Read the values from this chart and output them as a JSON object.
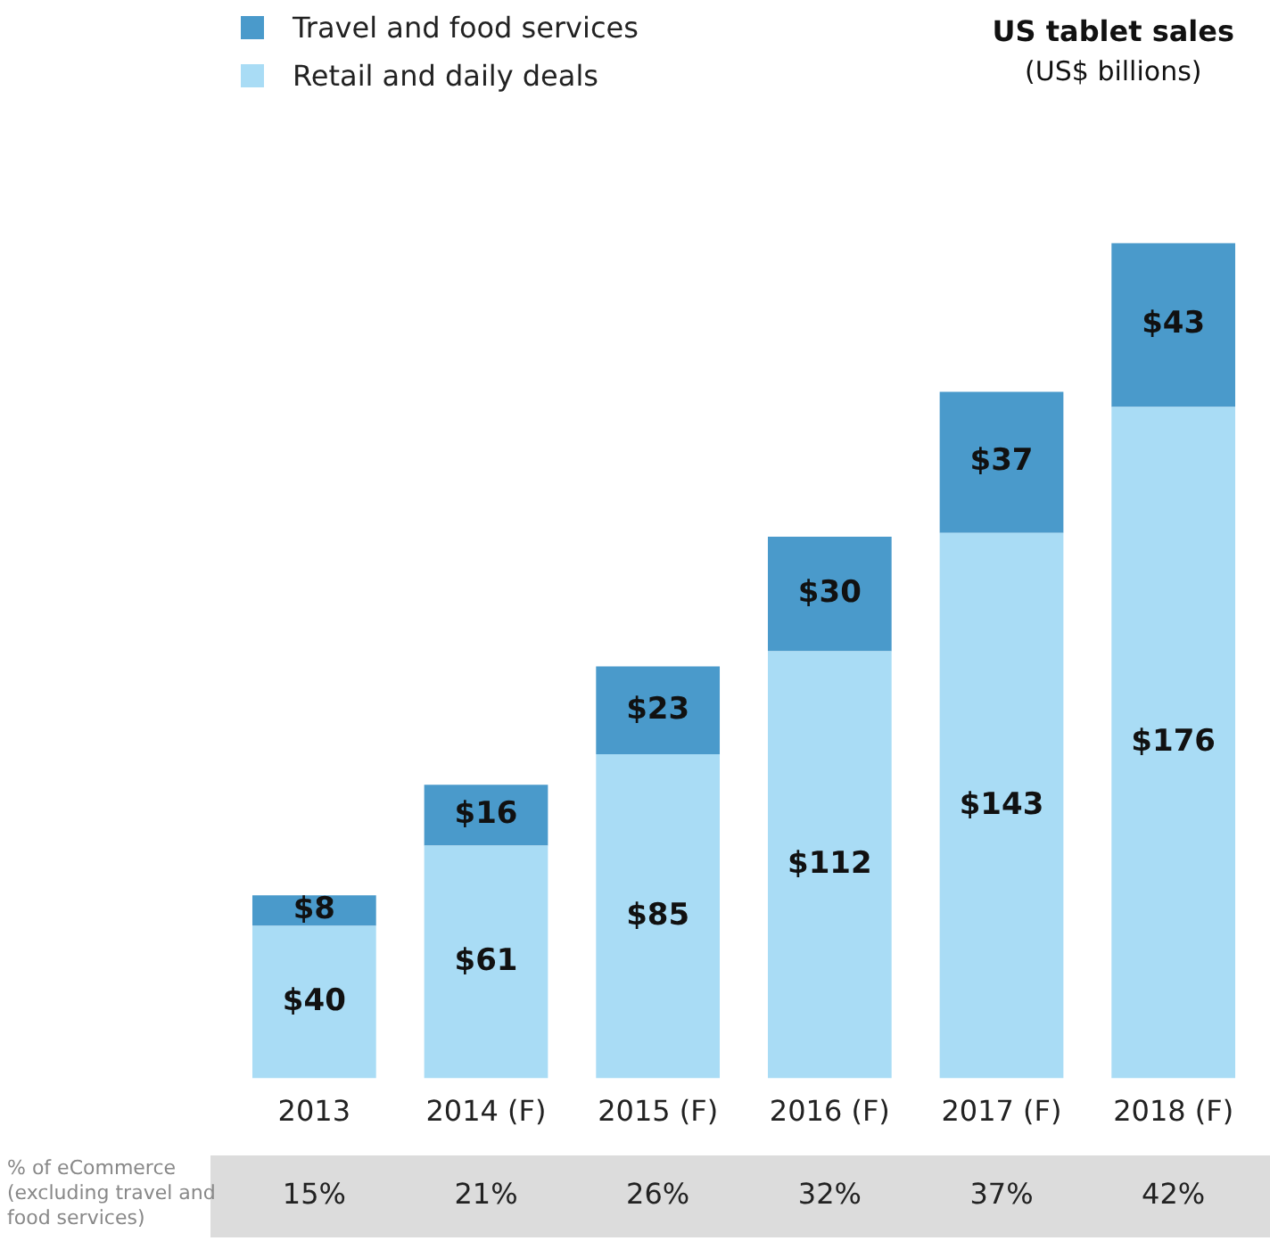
{
  "chart_data": {
    "type": "bar",
    "title": "US tablet sales",
    "subtitle": "(US$ billions)",
    "categories": [
      "2013",
      "2014 (F)",
      "2015 (F)",
      "2016 (F)",
      "2017 (F)",
      "2018 (F)"
    ],
    "stacked": true,
    "legend": "top left",
    "series": [
      {
        "name": "Retail and daily deals",
        "color": "#a9dcf5",
        "values": [
          40,
          61,
          85,
          112,
          143,
          176
        ],
        "value_labels": [
          "$40",
          "$61",
          "$85",
          "$112",
          "$143",
          "$176"
        ]
      },
      {
        "name": "Travel and food services",
        "color": "#4a9acb",
        "values": [
          8,
          16,
          23,
          30,
          37,
          43
        ],
        "value_labels": [
          "$8",
          "$16",
          "$23",
          "$30",
          "$37",
          "$43"
        ]
      }
    ],
    "annotations": [
      "% of eCommerce (excluding travel and food services)",
      "15%",
      "21%",
      "26%",
      "32%",
      "37%",
      "42%"
    ]
  }
}
